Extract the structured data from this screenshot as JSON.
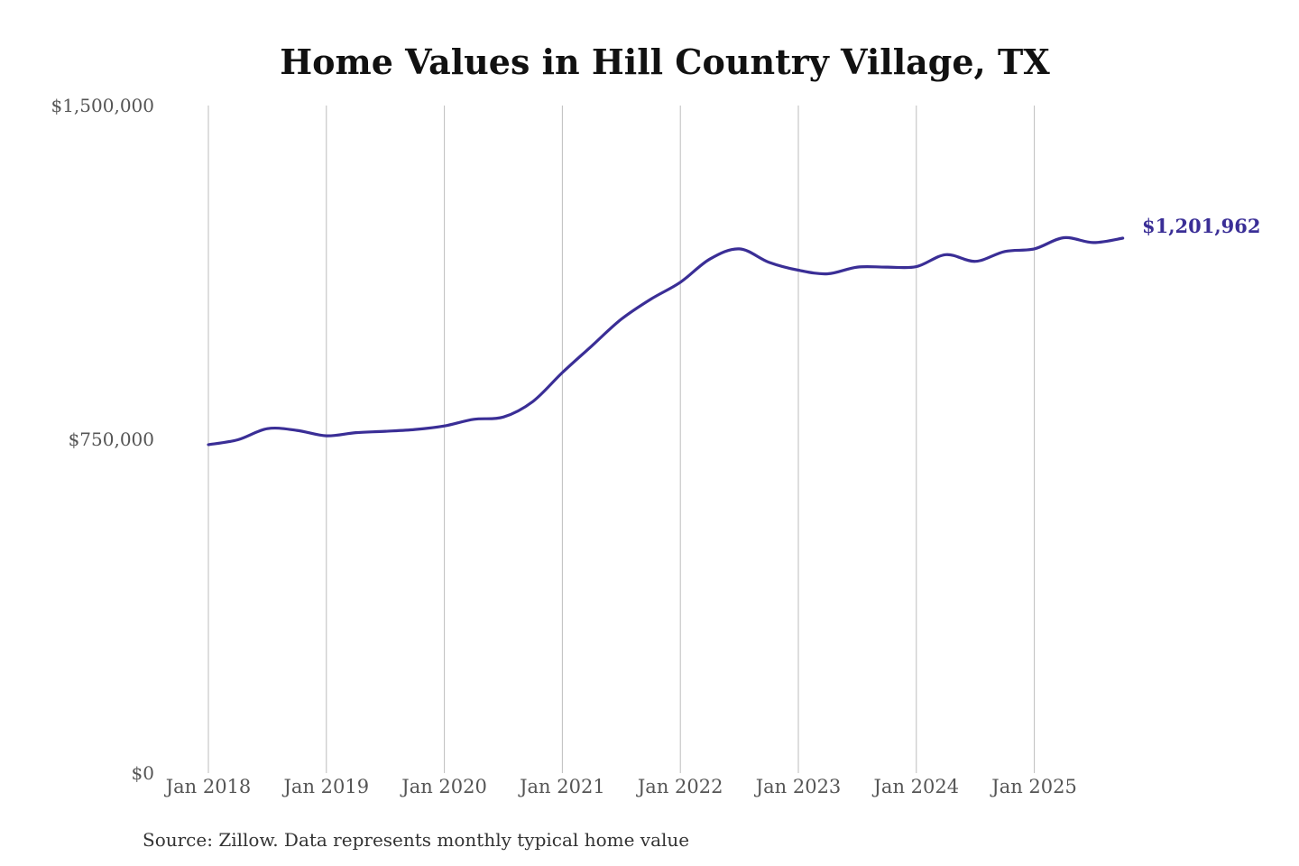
{
  "chart_data": {
    "type": "line",
    "title": "Home Values in Hill Country Village, TX",
    "xlabel": "",
    "ylabel": "",
    "ylim": [
      0,
      1500000
    ],
    "y_ticks": [
      {
        "value": 0,
        "label": "$0"
      },
      {
        "value": 750000,
        "label": "$750,000"
      },
      {
        "value": 1500000,
        "label": "$1,500,000"
      }
    ],
    "x_ticks": [
      {
        "value": "2018-01",
        "label": "Jan 2018"
      },
      {
        "value": "2019-01",
        "label": "Jan 2019"
      },
      {
        "value": "2020-01",
        "label": "Jan 2020"
      },
      {
        "value": "2021-01",
        "label": "Jan 2021"
      },
      {
        "value": "2022-01",
        "label": "Jan 2022"
      },
      {
        "value": "2023-01",
        "label": "Jan 2023"
      },
      {
        "value": "2024-01",
        "label": "Jan 2024"
      },
      {
        "value": "2025-01",
        "label": "Jan 2025"
      }
    ],
    "grid": "vertical",
    "series": [
      {
        "color": "#3a2e96",
        "x": [
          "2018-01",
          "2018-04",
          "2018-07",
          "2018-10",
          "2019-01",
          "2019-04",
          "2019-07",
          "2019-10",
          "2020-01",
          "2020-04",
          "2020-07",
          "2020-10",
          "2021-01",
          "2021-04",
          "2021-07",
          "2021-10",
          "2022-01",
          "2022-04",
          "2022-07",
          "2022-10",
          "2023-01",
          "2023-04",
          "2023-07",
          "2023-10",
          "2024-01",
          "2024-04",
          "2024-07",
          "2024-10",
          "2025-01",
          "2025-04",
          "2025-07",
          "2025-10"
        ],
        "values": [
          738000,
          749000,
          774000,
          770000,
          758000,
          765000,
          768000,
          772000,
          780000,
          795000,
          800000,
          835000,
          900000,
          960000,
          1020000,
          1065000,
          1103000,
          1155000,
          1178000,
          1148000,
          1130000,
          1122000,
          1137000,
          1137000,
          1138000,
          1165000,
          1150000,
          1172000,
          1178000,
          1203000,
          1192000,
          1201962
        ]
      }
    ],
    "end_label": "$1,201,962",
    "source": "Source: Zillow. Data represents monthly typical home value"
  }
}
